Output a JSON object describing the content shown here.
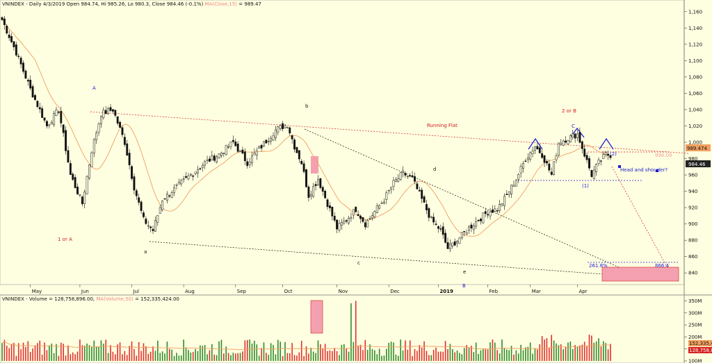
{
  "header": {
    "price_legend": "VNINDEX - Daily 4/3/2019 Open 984.74, Hi 985.26, Lo 980.3, Close 984.46 (-0.1%)",
    "price_ma_label": "MA(Close,15)",
    "price_ma_value": "= 989.47",
    "volume_legend": "VNINDEX - Volume = 128,758,896.00,",
    "volume_ma_label": "MA(Volume,50)",
    "volume_ma_value": "= 152,335,424.00"
  },
  "colors": {
    "background": "#fefee0",
    "candle": "#111111",
    "ma_line": "#f0a060",
    "vol_up": "#2e8b2e",
    "vol_down": "#e03030",
    "annotation_red": "#d42020",
    "annotation_blue": "#2020d0",
    "highlight_box": "#f4a0b0"
  },
  "chart_data": [
    {
      "type": "candlestick",
      "title": "VNINDEX - Daily",
      "ylim": [
        830,
        1170
      ],
      "y_ticks": [
        "840",
        "860",
        "880",
        "900",
        "920",
        "940",
        "960",
        "980",
        "1,000",
        "1,020",
        "1,040",
        "1,060",
        "1,080",
        "1,100",
        "1,120",
        "1,140",
        "1,160"
      ],
      "x_ticks": [
        "May",
        "Jun",
        "Jul",
        "Aug",
        "Sep",
        "Oct",
        "Nov",
        "Dec",
        "2019",
        "Feb",
        "Mar",
        "Apr"
      ],
      "close_path": [
        [
          0,
          1150
        ],
        [
          6,
          1110
        ],
        [
          12,
          1065
        ],
        [
          19,
          1020
        ],
        [
          24,
          1040
        ],
        [
          29,
          960
        ],
        [
          34,
          925
        ],
        [
          38,
          990
        ],
        [
          42,
          1035
        ],
        [
          47,
          1040
        ],
        [
          52,
          1000
        ],
        [
          56,
          945
        ],
        [
          60,
          905
        ],
        [
          64,
          892
        ],
        [
          68,
          930
        ],
        [
          74,
          945
        ],
        [
          80,
          960
        ],
        [
          86,
          975
        ],
        [
          92,
          985
        ],
        [
          98,
          1000
        ],
        [
          104,
          975
        ],
        [
          110,
          995
        ],
        [
          116,
          1015
        ],
        [
          121,
          1022
        ],
        [
          124,
          995
        ],
        [
          127,
          975
        ],
        [
          130,
          935
        ],
        [
          134,
          955
        ],
        [
          138,
          925
        ],
        [
          142,
          895
        ],
        [
          146,
          905
        ],
        [
          150,
          918
        ],
        [
          154,
          900
        ],
        [
          158,
          915
        ],
        [
          162,
          930
        ],
        [
          166,
          950
        ],
        [
          170,
          962
        ],
        [
          174,
          955
        ],
        [
          178,
          930
        ],
        [
          182,
          905
        ],
        [
          186,
          892
        ],
        [
          189,
          870
        ],
        [
          193,
          880
        ],
        [
          198,
          895
        ],
        [
          202,
          905
        ],
        [
          206,
          915
        ],
        [
          210,
          918
        ],
        [
          214,
          935
        ],
        [
          218,
          955
        ],
        [
          222,
          980
        ],
        [
          226,
          995
        ],
        [
          229,
          985
        ],
        [
          233,
          960
        ],
        [
          236,
          1000
        ],
        [
          240,
          1005
        ],
        [
          244,
          1010
        ],
        [
          247,
          985
        ],
        [
          250,
          960
        ],
        [
          253,
          975
        ],
        [
          256,
          985
        ],
        [
          258,
          984.46
        ]
      ],
      "moving_average": {
        "name": "MA(Close,15)",
        "last": 989.47
      },
      "price_labels": {
        "last_close": "984.46",
        "ma_value": "989.474"
      },
      "annotations": {
        "wave_labels": [
          {
            "text": "A",
            "color": "blue"
          },
          {
            "text": "1 or A",
            "color": "red"
          },
          {
            "text": "b",
            "color": "black"
          },
          {
            "text": "a",
            "color": "black"
          },
          {
            "text": "Running Flat",
            "color": "red"
          },
          {
            "text": "c",
            "color": "black"
          },
          {
            "text": "d",
            "color": "black"
          },
          {
            "text": "e",
            "color": "black"
          },
          {
            "text": "B",
            "color": "blue"
          },
          {
            "text": "2 or B",
            "color": "red"
          },
          {
            "text": "C",
            "color": "blue"
          },
          {
            "text": "(1)",
            "color": "blue"
          },
          {
            "text": "(2)",
            "color": "blue"
          },
          {
            "text": "Head and shouder?",
            "color": "blue"
          },
          {
            "text": "261.8%",
            "color": "blue"
          },
          {
            "text": "866.4",
            "color": "blue"
          },
          {
            "text": "996.09",
            "color": "red"
          }
        ]
      }
    },
    {
      "type": "bar",
      "title": "VNINDEX - Volume",
      "ylim": [
        100,
        360
      ],
      "y_ticks": [
        "100M",
        "150M",
        "200M",
        "250M",
        "300M",
        "350M"
      ],
      "last_volume": 128758896,
      "ma_volume": 152335424,
      "volume_labels": {
        "ma": "152,335,4",
        "last": "128,758,8"
      }
    }
  ]
}
